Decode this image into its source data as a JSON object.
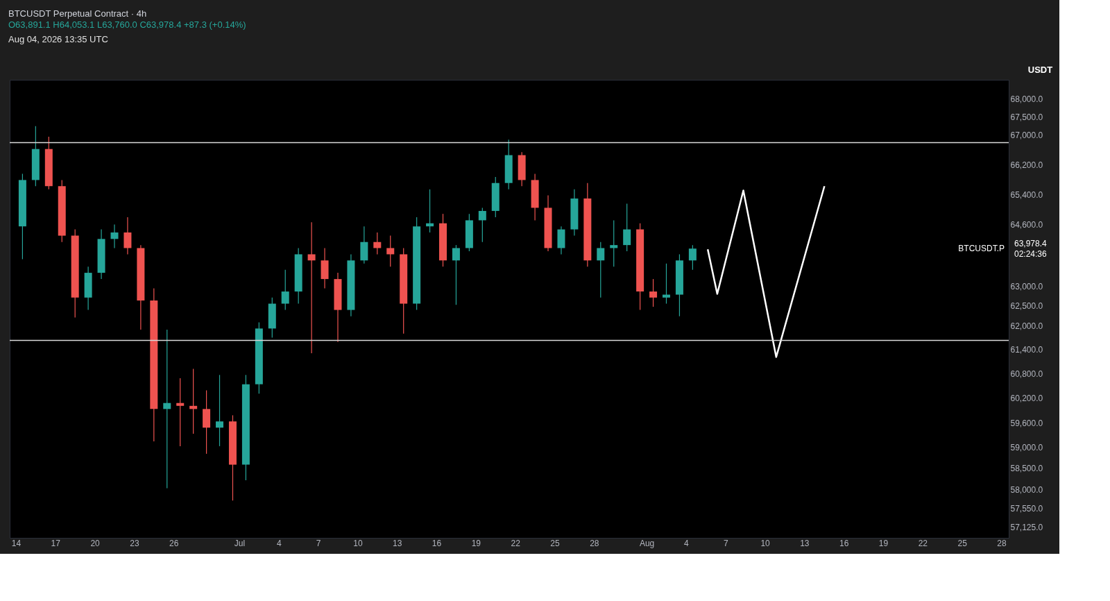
{
  "chart_data": {
    "type": "candlestick",
    "title": "BTCUSDT Perpetual Contract · 4h",
    "subtitle": "O63,891.1 H64,053.1 L63,760.0 C63,978.4 +87.3 (+0.14%)",
    "ylabel": "USDT",
    "x": [
      "2026-06-14T12:00",
      "2026-06-15T12:00",
      "2026-06-16T12:00",
      "2026-06-17T12:00",
      "2026-06-18T12:00",
      "2026-06-19T12:00",
      "2026-06-20T12:00",
      "2026-06-21T12:00",
      "2026-06-22T12:00",
      "2026-06-23T12:00",
      "2026-06-24T12:00",
      "2026-06-25T12:00",
      "2026-06-26T12:00",
      "2026-06-27T12:00",
      "2026-06-28T12:00",
      "2026-06-29T12:00",
      "2026-06-30T12:00",
      "2026-07-01T12:00",
      "2026-07-02T12:00",
      "2026-07-03T12:00",
      "2026-07-04T12:00",
      "2026-07-05T12:00",
      "2026-07-06T12:00",
      "2026-07-07T12:00",
      "2026-07-08T12:00",
      "2026-07-09T12:00",
      "2026-07-10T12:00",
      "2026-07-11T12:00",
      "2026-07-12T12:00",
      "2026-07-13T12:00",
      "2026-07-14T12:00",
      "2026-07-15T12:00",
      "2026-07-16T12:00",
      "2026-07-17T12:00",
      "2026-07-18T12:00",
      "2026-07-19T12:00",
      "2026-07-20T12:00",
      "2026-07-21T12:00",
      "2026-07-22T12:00",
      "2026-07-23T12:00",
      "2026-07-24T12:00",
      "2026-07-25T12:00",
      "2026-07-26T12:00",
      "2026-07-27T12:00",
      "2026-07-28T12:00",
      "2026-07-29T12:00",
      "2026-07-30T12:00",
      "2026-07-31T12:00",
      "2026-08-01T12:00",
      "2026-08-02T12:00",
      "2026-08-03T12:00",
      "2026-08-04T12:00"
    ],
    "ohlc": [
      [
        64560,
        65957,
        63703,
        65790
      ],
      [
        65790,
        67250,
        65626,
        66626
      ],
      [
        66626,
        66962,
        65540,
        65626
      ],
      [
        65626,
        65790,
        64150,
        64316
      ],
      [
        64316,
        64480,
        62210,
        62715
      ],
      [
        62715,
        63510,
        62400,
        63351
      ],
      [
        63351,
        64480,
        63190,
        64230
      ],
      [
        64230,
        64610,
        63992,
        64400
      ],
      [
        64400,
        64800,
        63830,
        63992
      ],
      [
        63992,
        64070,
        61900,
        62640
      ],
      [
        62640,
        62950,
        59150,
        59933
      ],
      [
        59933,
        61900,
        58030,
        60080
      ],
      [
        60080,
        60690,
        59033,
        60010
      ],
      [
        60010,
        60920,
        59331,
        59933
      ],
      [
        59933,
        60390,
        58850,
        59480
      ],
      [
        59480,
        60770,
        59033,
        59631
      ],
      [
        59631,
        59780,
        57740,
        58590
      ],
      [
        58590,
        60770,
        58220,
        60540
      ],
      [
        60540,
        62086,
        60310,
        61930
      ],
      [
        61930,
        62715,
        61700,
        62560
      ],
      [
        62560,
        63430,
        62400,
        62870
      ],
      [
        62870,
        63992,
        62560,
        63830
      ],
      [
        63830,
        64670,
        61310,
        63671
      ],
      [
        63671,
        63992,
        62950,
        63190
      ],
      [
        63190,
        63351,
        61590,
        62400
      ],
      [
        62400,
        63830,
        62240,
        63671
      ],
      [
        63671,
        64560,
        63590,
        64150
      ],
      [
        64150,
        64400,
        63830,
        63992
      ],
      [
        63992,
        64316,
        63510,
        63830
      ],
      [
        63830,
        63992,
        61800,
        62560
      ],
      [
        62560,
        64800,
        62400,
        64560
      ],
      [
        64560,
        65540,
        64400,
        64641
      ],
      [
        64641,
        64890,
        63510,
        63671
      ],
      [
        63671,
        64070,
        62530,
        63992
      ],
      [
        63992,
        64890,
        63910,
        64720
      ],
      [
        64720,
        65050,
        64150,
        64967
      ],
      [
        64967,
        65870,
        64800,
        65710
      ],
      [
        65710,
        66880,
        65540,
        66460
      ],
      [
        66460,
        66540,
        65626,
        65790
      ],
      [
        65790,
        65957,
        64720,
        65050
      ],
      [
        65050,
        65380,
        63910,
        63992
      ],
      [
        63992,
        64560,
        63830,
        64480
      ],
      [
        64480,
        65540,
        64316,
        65296
      ],
      [
        65296,
        65710,
        63510,
        63671
      ],
      [
        63671,
        64150,
        62715,
        63992
      ],
      [
        63992,
        64720,
        63510,
        64070
      ],
      [
        64070,
        65160,
        63910,
        64480
      ],
      [
        64480,
        64641,
        62400,
        62870
      ],
      [
        62870,
        63190,
        62480,
        62715
      ],
      [
        62715,
        63590,
        62560,
        62790
      ],
      [
        62790,
        63830,
        62240,
        63671
      ],
      [
        63671,
        64070,
        63430,
        63978.4
      ]
    ],
    "colors": [
      "#26a69a",
      "#26a69a",
      "#ef5350",
      "#ef5350",
      "#ef5350",
      "#26a69a",
      "#26a69a",
      "#26a69a",
      "#ef5350",
      "#ef5350",
      "#ef5350",
      "#26a69a",
      "#ef5350",
      "#ef5350",
      "#ef5350",
      "#26a69a",
      "#ef5350",
      "#26a69a",
      "#26a69a",
      "#26a69a",
      "#26a69a",
      "#26a69a",
      "#ef5350",
      "#ef5350",
      "#ef5350",
      "#26a69a",
      "#26a69a",
      "#ef5350",
      "#ef5350",
      "#ef5350",
      "#26a69a",
      "#26a69a",
      "#ef5350",
      "#26a69a",
      "#26a69a",
      "#26a69a",
      "#26a69a",
      "#26a69a",
      "#ef5350",
      "#ef5350",
      "#ef5350",
      "#26a69a",
      "#26a69a",
      "#ef5350",
      "#26a69a",
      "#26a69a",
      "#26a69a",
      "#ef5350",
      "#ef5350",
      "#26a69a",
      "#26a69a",
      "#26a69a"
    ],
    "series": [
      {
        "type": "line",
        "color": "#ffffff",
        "x": [
          "2026-08-05T15:36",
          "2026-08-06T09:00",
          "2026-08-08T08:40",
          "2026-08-10T20:40",
          "2026-08-14T12:45"
        ],
        "values": [
          63960,
          62810,
          65510,
          61215,
          65626
        ]
      }
    ],
    "log": true,
    "xlim": [
      "2026-06-13T19:00",
      "2026-08-28T07:00"
    ],
    "xticks": [
      {
        "value": "2026-06-14",
        "label": "14"
      },
      {
        "value": "2026-06-17",
        "label": "17"
      },
      {
        "value": "2026-06-20",
        "label": "20"
      },
      {
        "value": "2026-06-23",
        "label": "23"
      },
      {
        "value": "2026-06-26",
        "label": "26"
      },
      {
        "value": "2026-07-01",
        "label": "Jul"
      },
      {
        "value": "2026-07-04",
        "label": "4"
      },
      {
        "value": "2026-07-07",
        "label": "7"
      },
      {
        "value": "2026-07-10",
        "label": "10"
      },
      {
        "value": "2026-07-13",
        "label": "13"
      },
      {
        "value": "2026-07-16",
        "label": "16"
      },
      {
        "value": "2026-07-19",
        "label": "19"
      },
      {
        "value": "2026-07-22",
        "label": "22"
      },
      {
        "value": "2026-07-25",
        "label": "25"
      },
      {
        "value": "2026-07-28",
        "label": "28"
      },
      {
        "value": "2026-08-01",
        "label": "Aug"
      },
      {
        "value": "2026-08-04",
        "label": "4"
      },
      {
        "value": "2026-08-07",
        "label": "7"
      },
      {
        "value": "2026-08-10",
        "label": "10"
      },
      {
        "value": "2026-08-13",
        "label": "13"
      },
      {
        "value": "2026-08-16",
        "label": "16"
      },
      {
        "value": "2026-08-19",
        "label": "19"
      },
      {
        "value": "2026-08-22",
        "label": "22"
      },
      {
        "value": "2026-08-25",
        "label": "25"
      },
      {
        "value": "2026-08-28",
        "label": "28"
      }
    ],
    "ylim": [
      56870,
      68530
    ],
    "yticks": [
      {
        "value": 57125,
        "label": "57,125.0"
      },
      {
        "value": 57550,
        "label": "57,550.0"
      },
      {
        "value": 58000,
        "label": "58,000.0"
      },
      {
        "value": 58500,
        "label": "58,500.0"
      },
      {
        "value": 59000,
        "label": "59,000.0"
      },
      {
        "value": 59600,
        "label": "59,600.0"
      },
      {
        "value": 60200,
        "label": "60,200.0"
      },
      {
        "value": 60800,
        "label": "60,800.0"
      },
      {
        "value": 61400,
        "label": "61,400.0"
      },
      {
        "value": 62000,
        "label": "62,000.0"
      },
      {
        "value": 62500,
        "label": "62,500.0"
      },
      {
        "value": 63000,
        "label": "63,000.0"
      },
      {
        "value": 64600,
        "label": "64,600.0"
      },
      {
        "value": 65400,
        "label": "65,400.0"
      },
      {
        "value": 66200,
        "label": "66,200.0"
      },
      {
        "value": 67000,
        "label": "67,000.0"
      },
      {
        "value": 67500,
        "label": "67,500.0"
      },
      {
        "value": 68000,
        "label": "68,000.0"
      }
    ],
    "ref_lines": [
      {
        "axis": "y",
        "value": 66800,
        "color": "#d9d9d9"
      },
      {
        "axis": "y",
        "value": 61630,
        "color": "#d9d9d9"
      }
    ],
    "annotations": [
      "Aug 04, 2026 13:35 UTC",
      "BTCUSDT.P",
      "63,978.4",
      "02:24:36"
    ],
    "grid": false
  }
}
